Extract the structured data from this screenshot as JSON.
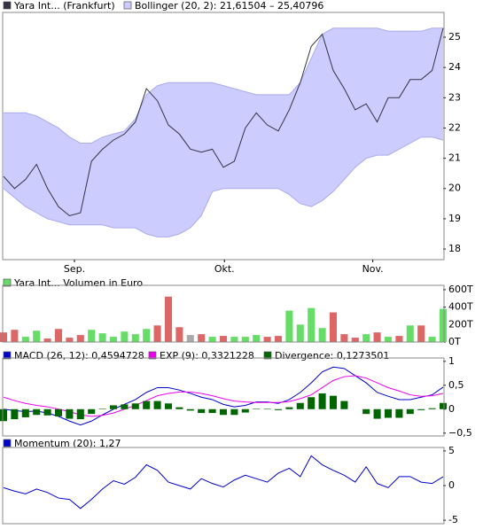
{
  "chart_data": [
    {
      "type": "bollinger",
      "xlim": [
        0,
        40
      ],
      "xticks": [
        {
          "value": 6.45,
          "label": "Sep."
        },
        {
          "value": 20.1,
          "label": "Okt."
        },
        {
          "value": 33.6,
          "label": "Nov."
        }
      ],
      "ylim": [
        17.65,
        25.82
      ],
      "yticks": [
        18,
        19,
        20,
        21,
        22,
        23,
        24,
        25
      ],
      "series": [
        {
          "name": "Yara Int... (Frankfurt)",
          "color": "#333344",
          "values": [
            20.4,
            20.0,
            20.3,
            20.8,
            20.0,
            19.4,
            19.1,
            19.2,
            20.9,
            21.3,
            21.6,
            21.8,
            22.2,
            23.3,
            22.9,
            22.1,
            21.8,
            21.3,
            21.2,
            21.3,
            20.7,
            20.9,
            22.0,
            22.5,
            22.1,
            21.9,
            22.6,
            23.5,
            24.7,
            25.1,
            23.9,
            23.3,
            22.6,
            22.8,
            22.2,
            23.0,
            23.0,
            23.6,
            23.6,
            23.9,
            25.3
          ]
        }
      ],
      "band": {
        "name": "Bollinger (20, 2): 21,61504 – 25,40796",
        "color": "#ccccff",
        "upper": [
          22.5,
          22.5,
          22.5,
          22.4,
          22.2,
          22.0,
          21.7,
          21.5,
          21.5,
          21.7,
          21.8,
          21.9,
          22.3,
          23.1,
          23.4,
          23.5,
          23.5,
          23.5,
          23.5,
          23.5,
          23.4,
          23.3,
          23.2,
          23.1,
          23.1,
          23.1,
          23.1,
          23.5,
          24.3,
          25.1,
          25.3,
          25.3,
          25.3,
          25.3,
          25.3,
          25.2,
          25.2,
          25.2,
          25.2,
          25.3,
          25.3
        ],
        "lower": [
          20.0,
          19.7,
          19.4,
          19.2,
          19.0,
          18.9,
          18.8,
          18.8,
          18.8,
          18.8,
          18.7,
          18.7,
          18.7,
          18.5,
          18.4,
          18.4,
          18.5,
          18.7,
          19.1,
          19.9,
          20.0,
          20.0,
          20.0,
          20.0,
          20.0,
          20.0,
          19.8,
          19.5,
          19.4,
          19.6,
          19.9,
          20.3,
          20.7,
          21.0,
          21.1,
          21.1,
          21.3,
          21.5,
          21.7,
          21.7,
          21.6
        ]
      }
    },
    {
      "type": "bar",
      "ylim": [
        0,
        650
      ],
      "yticks": [
        {
          "value": 0,
          "label": "0T"
        },
        {
          "value": 200,
          "label": "200T"
        },
        {
          "value": 400,
          "label": "400T"
        },
        {
          "value": 600,
          "label": "600T"
        }
      ],
      "series": [
        {
          "name": "Yara Int... Volumen in Euro",
          "color": "#66dd66",
          "values": [
            110,
            140,
            60,
            130,
            40,
            150,
            50,
            80,
            140,
            100,
            60,
            120,
            90,
            150,
            190,
            520,
            170,
            80,
            90,
            60,
            70,
            60,
            60,
            80,
            60,
            70,
            360,
            200,
            390,
            160,
            340,
            90,
            50,
            90,
            110,
            60,
            70,
            190,
            190,
            60,
            380
          ],
          "colors": [
            "#dd6666",
            "#dd6666",
            "#66dd66",
            "#66dd66",
            "#dd6666",
            "#dd6666",
            "#dd6666",
            "#dd6666",
            "#66dd66",
            "#66dd66",
            "#66dd66",
            "#66dd66",
            "#66dd66",
            "#66dd66",
            "#dd6666",
            "#dd6666",
            "#dd6666",
            "#aaaaaa",
            "#dd6666",
            "#66dd66",
            "#dd6666",
            "#66dd66",
            "#66dd66",
            "#66dd66",
            "#dd6666",
            "#dd6666",
            "#66dd66",
            "#66dd66",
            "#66dd66",
            "#66dd66",
            "#dd6666",
            "#dd6666",
            "#dd6666",
            "#66dd66",
            "#dd6666",
            "#66dd66",
            "#dd6666",
            "#66dd66",
            "#dd6666",
            "#66dd66",
            "#66dd66"
          ]
        }
      ]
    },
    {
      "type": "macd",
      "ylim": [
        -0.56,
        1.07
      ],
      "yticks": [
        {
          "value": -0.5,
          "label": "−0,5"
        },
        0,
        {
          "value": 0.5,
          "label": "0,5"
        },
        1
      ],
      "series": [
        {
          "name": "MACD (26, 12): 0,4594728",
          "color": "#0000cc",
          "style": "line",
          "values": [
            0.0,
            -0.03,
            -0.05,
            -0.04,
            -0.08,
            -0.15,
            -0.25,
            -0.33,
            -0.25,
            -0.12,
            0.0,
            0.1,
            0.2,
            0.35,
            0.45,
            0.45,
            0.4,
            0.33,
            0.25,
            0.2,
            0.1,
            0.05,
            0.08,
            0.15,
            0.15,
            0.12,
            0.2,
            0.35,
            0.55,
            0.78,
            0.88,
            0.85,
            0.7,
            0.55,
            0.35,
            0.27,
            0.2,
            0.2,
            0.25,
            0.3,
            0.46
          ]
        },
        {
          "name": "EXP (9): 0,3321228",
          "color": "#ee00ee",
          "style": "line",
          "values": [
            0.25,
            0.18,
            0.12,
            0.08,
            0.05,
            0.0,
            -0.05,
            -0.12,
            -0.15,
            -0.13,
            -0.08,
            0.0,
            0.08,
            0.18,
            0.28,
            0.33,
            0.36,
            0.36,
            0.33,
            0.28,
            0.22,
            0.17,
            0.15,
            0.14,
            0.14,
            0.14,
            0.16,
            0.22,
            0.3,
            0.45,
            0.6,
            0.68,
            0.7,
            0.65,
            0.55,
            0.45,
            0.38,
            0.3,
            0.27,
            0.28,
            0.33
          ]
        },
        {
          "name": "Divergence: 0,1273501",
          "color": "#006600",
          "style": "bar",
          "values": [
            -0.25,
            -0.21,
            -0.17,
            -0.12,
            -0.13,
            -0.15,
            -0.2,
            -0.21,
            -0.1,
            0.01,
            0.08,
            0.1,
            0.12,
            0.17,
            0.17,
            0.12,
            0.04,
            -0.03,
            -0.08,
            -0.08,
            -0.12,
            -0.12,
            -0.07,
            0.01,
            0.01,
            -0.02,
            0.04,
            0.13,
            0.25,
            0.33,
            0.28,
            0.17,
            0.0,
            -0.1,
            -0.2,
            -0.18,
            -0.18,
            -0.1,
            -0.02,
            0.02,
            0.13
          ]
        }
      ]
    },
    {
      "type": "line",
      "ylim": [
        -5.5,
        5.5
      ],
      "yticks": [
        -5,
        0,
        5
      ],
      "series": [
        {
          "name": "Momentum (20): 1,27",
          "color": "#0000cc",
          "values": [
            -0.3,
            -0.8,
            -1.2,
            -0.5,
            -1.0,
            -1.8,
            -2.0,
            -3.3,
            -2.0,
            -0.5,
            0.7,
            0.2,
            1.2,
            3.0,
            2.2,
            0.5,
            0.0,
            -0.5,
            1.0,
            0.3,
            -0.2,
            0.8,
            1.5,
            1.0,
            0.5,
            1.8,
            2.5,
            1.3,
            4.3,
            3.0,
            2.2,
            1.5,
            0.5,
            2.7,
            0.3,
            -0.3,
            1.3,
            1.3,
            0.5,
            0.3,
            1.27
          ]
        }
      ]
    }
  ]
}
